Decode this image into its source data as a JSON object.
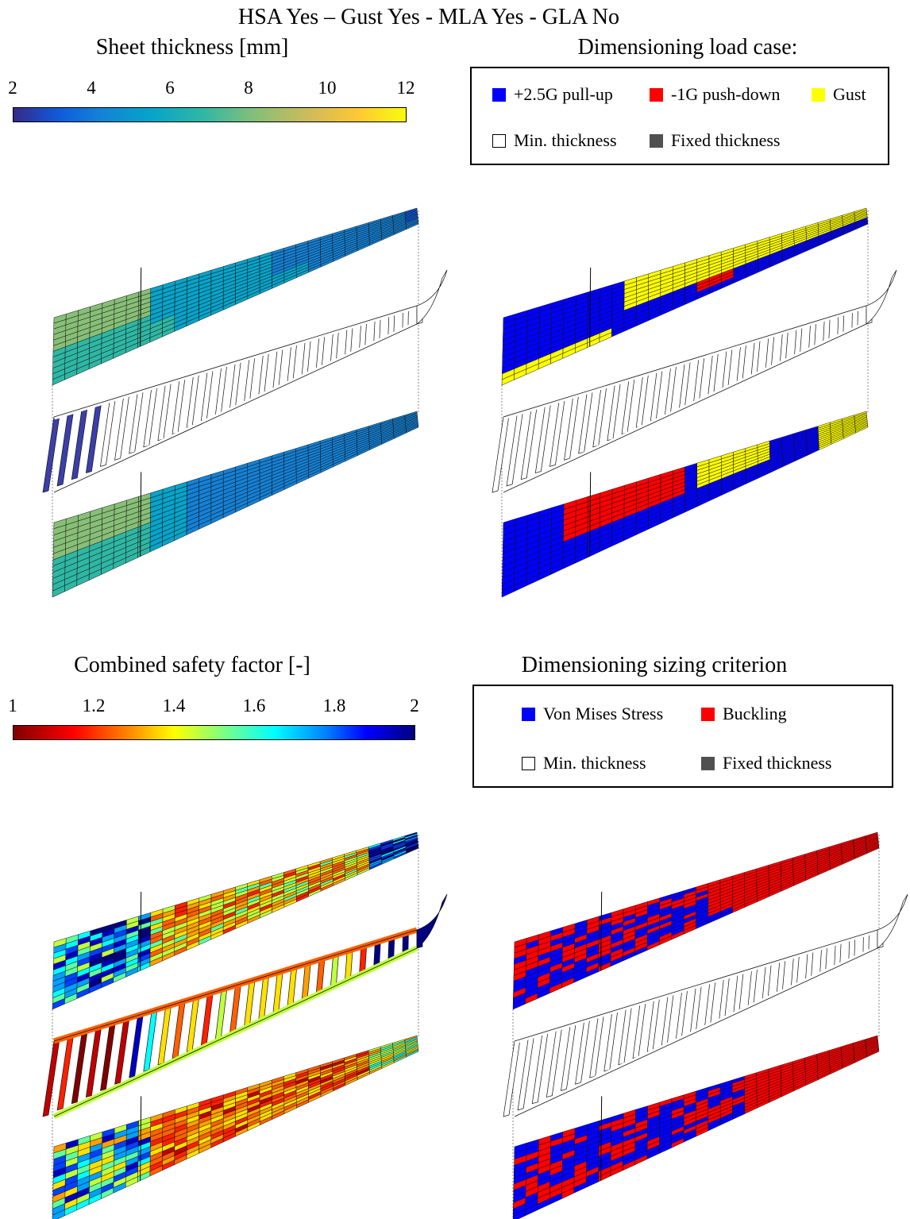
{
  "figure_title": "HSA Yes – Gust Yes - MLA Yes - GLA No",
  "panels": {
    "thickness": {
      "title": "Sheet thickness [mm]",
      "colormap": "parula",
      "ticks": [
        "2",
        "4",
        "6",
        "8",
        "10",
        "12"
      ]
    },
    "load_case": {
      "title": "Dimensioning load case:",
      "legend": [
        {
          "label": "+2.5G pull-up",
          "color": "#0000ff"
        },
        {
          "label": "-1G push-down",
          "color": "#ff0000"
        },
        {
          "label": "Gust",
          "color": "#ffff00"
        },
        {
          "label": "Min. thickness",
          "color": "#ffffff"
        },
        {
          "label": "Fixed thickness",
          "color": "#505050"
        }
      ]
    },
    "safety": {
      "title": "Combined safety factor [-]",
      "colormap": "jet (reversed)",
      "ticks": [
        "1",
        "1.2",
        "1.4",
        "1.6",
        "1.8",
        "2"
      ]
    },
    "criterion": {
      "title": "Dimensioning sizing criterion",
      "legend": [
        {
          "label": "Von Mises Stress",
          "color": "#0000ff"
        },
        {
          "label": "Buckling",
          "color": "#ff0000"
        },
        {
          "label": "Min. thickness",
          "color": "#ffffff"
        },
        {
          "label": "Fixed thickness",
          "color": "#505050"
        }
      ]
    }
  }
}
